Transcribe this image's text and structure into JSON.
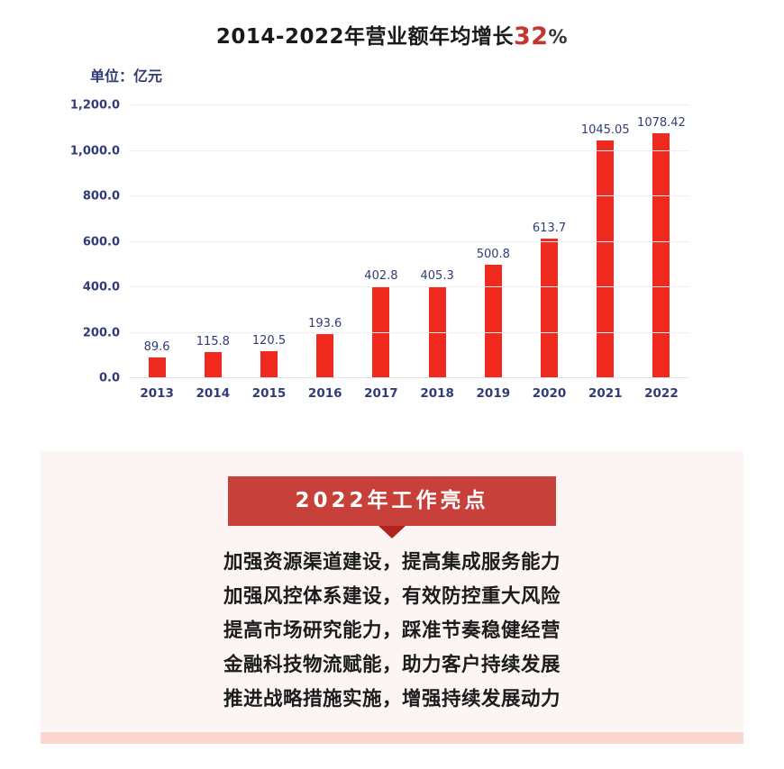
{
  "title": {
    "prefix": "2014-2022年营业额年均增长",
    "highlight": "32",
    "suffix": "%"
  },
  "chart": {
    "unit_label": "单位：亿元"
  },
  "chart_data": {
    "type": "bar",
    "title": "2014-2022年营业额年均增长32%",
    "categories": [
      "2013",
      "2014",
      "2015",
      "2016",
      "2017",
      "2018",
      "2019",
      "2020",
      "2021",
      "2022"
    ],
    "values": [
      89.6,
      115.8,
      120.5,
      193.6,
      402.8,
      405.3,
      500.8,
      613.7,
      1045.05,
      1078.42
    ],
    "value_labels": [
      "89.6",
      "115.8",
      "120.5",
      "193.6",
      "402.8",
      "405.3",
      "500.8",
      "613.7",
      "1045.05",
      "1078.42"
    ],
    "xlabel": "",
    "ylabel": "亿元",
    "unit": "亿元",
    "ylim": [
      0,
      1200
    ],
    "yticks": [
      0,
      200,
      400,
      600,
      800,
      1000,
      1200
    ],
    "ytick_labels": [
      "0.0",
      "200.0",
      "400.0",
      "600.0",
      "800.0",
      "1,000.0",
      "1,200.0"
    ],
    "grid": true,
    "legend": "none"
  },
  "highlights": {
    "banner_title": "2022年工作亮点",
    "items": [
      "加强资源渠道建设，提高集成服务能力",
      "加强风控体系建设，有效防控重大风险",
      "提高市场研究能力，踩准节奏稳健经营",
      "金融科技物流赋能，助力客户持续发展",
      "推进战略措施实施，增强持续发展动力"
    ]
  },
  "colors": {
    "bar-red": "#f12a1f",
    "title-dark": "#1a1a1a",
    "title-highlight-red": "#c43630",
    "navy": "#303c78",
    "banner-red": "#c7413a",
    "pointer-red": "#b0241b",
    "panel-pink": "#fdf5f4",
    "strip-pink": "#fbd5d0",
    "text-dark": "#1c1c1c",
    "gridline": "#f0f0f0",
    "baseline": "#e4e4e4"
  }
}
